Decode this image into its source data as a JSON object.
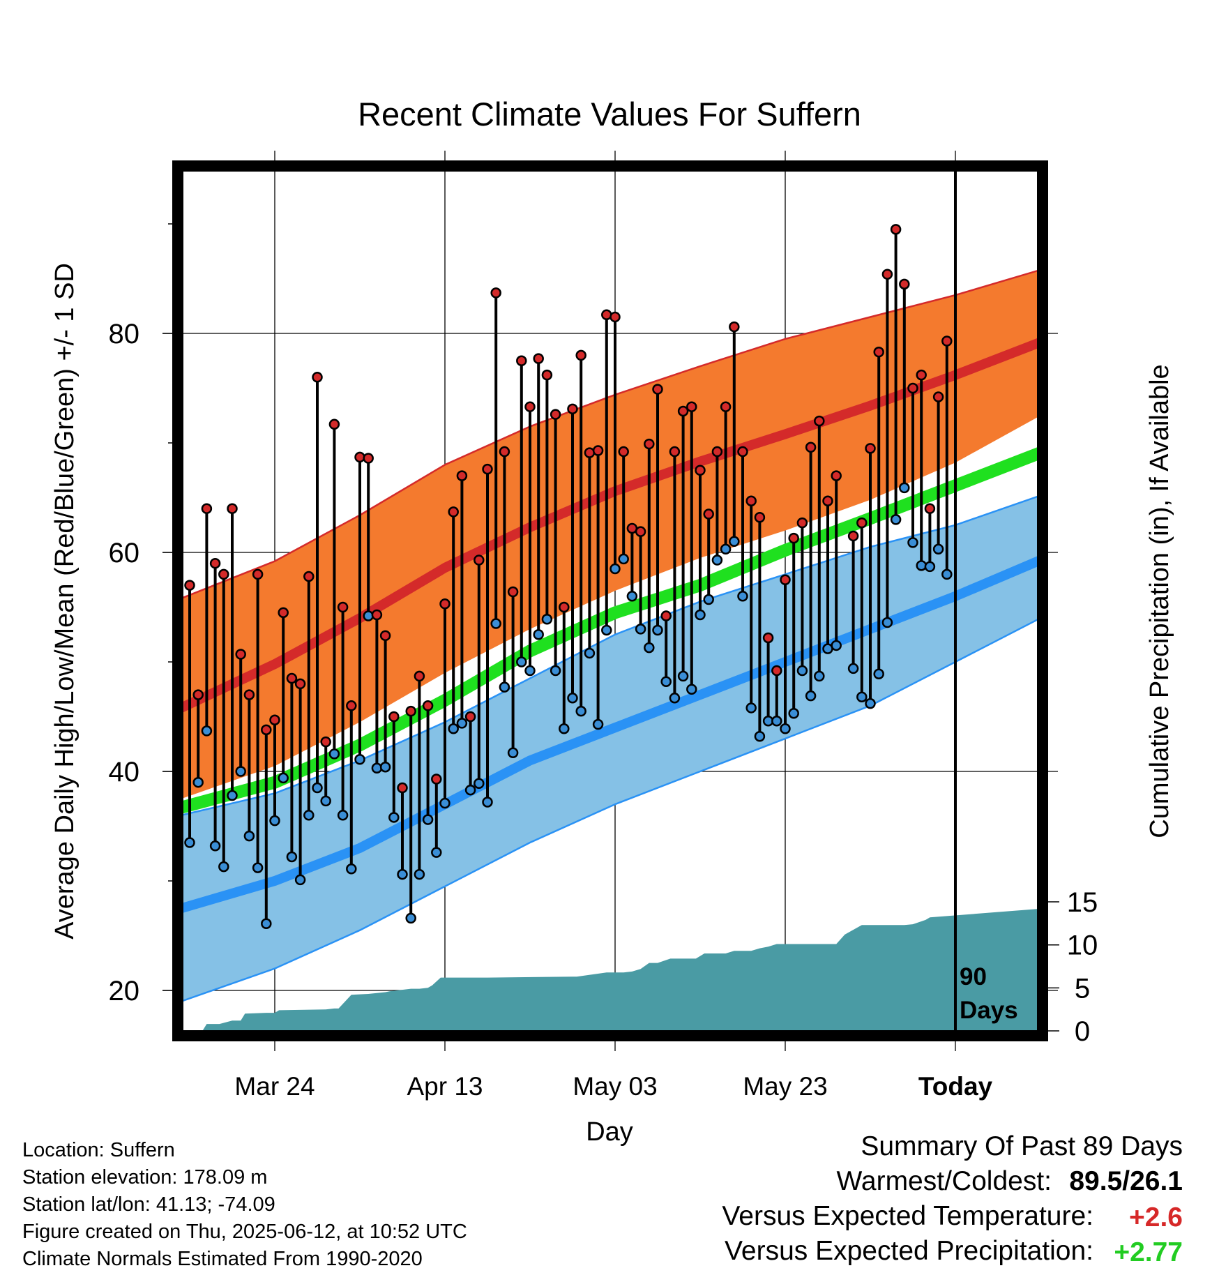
{
  "chart_data": {
    "type": "line",
    "title": "Recent Climate Values For Suffern",
    "xlabel": "Day",
    "ylabel": "Average Daily High/Low/Mean (Red/Blue/Green) +/- 1 SD",
    "y2label": "Cumulative Precipitation (in), If Available",
    "ylim": [
      16,
      96
    ],
    "y2lim": [
      0,
      30
    ],
    "xlim": [
      -1,
      100
    ],
    "x_start_date": "2025-03-14",
    "x_ticks": [
      {
        "x": 10,
        "label": "Mar 24"
      },
      {
        "x": 30,
        "label": "Apr 13"
      },
      {
        "x": 50,
        "label": "May 03"
      },
      {
        "x": 70,
        "label": "May 23"
      },
      {
        "x": 90,
        "label": "Today"
      }
    ],
    "y_ticks": [
      20,
      40,
      60,
      80
    ],
    "y2_ticks": [
      0,
      5,
      10,
      15
    ],
    "today_x": 90,
    "today_label_line1": "90",
    "today_label_line2": "Days",
    "grid": true,
    "colors": {
      "high_band": "#f47a2e",
      "high_line": "#d42a2a",
      "low_band": "#85c1e6",
      "low_line": "#2a92f5",
      "mean_line": "#1fe01f",
      "precip": "#4a9ba4",
      "high_dot": "#d42a2a",
      "low_dot": "#3a8ed6"
    },
    "normals": {
      "x": [
        -1,
        10,
        20,
        30,
        40,
        50,
        60,
        70,
        80,
        90,
        100
      ],
      "high": [
        45.8,
        49.8,
        54.0,
        58.6,
        62.3,
        65.6,
        68.3,
        70.8,
        73.4,
        76.2,
        79.2
      ],
      "high_upper": [
        55.8,
        59.2,
        63.4,
        68.0,
        71.5,
        74.4,
        77.0,
        79.5,
        81.5,
        83.5,
        85.8
      ],
      "high_lower": [
        37.5,
        40.5,
        44.5,
        49.0,
        53.0,
        56.5,
        59.5,
        62.0,
        64.8,
        68.2,
        72.5
      ],
      "mean": [
        36.7,
        39.0,
        42.4,
        46.5,
        51.0,
        54.5,
        57.0,
        60.2,
        63.1,
        66.1,
        69.1
      ],
      "low": [
        27.5,
        30.0,
        33.0,
        37.0,
        41.0,
        44.0,
        47.0,
        50.0,
        53.0,
        56.0,
        59.3
      ],
      "low_upper": [
        36.0,
        38.0,
        41.0,
        44.5,
        48.5,
        52.5,
        55.5,
        58.0,
        60.5,
        62.5,
        65.2
      ],
      "low_lower": [
        19.0,
        22.0,
        25.5,
        29.5,
        33.5,
        37.0,
        40.0,
        43.0,
        46.0,
        50.0,
        54.0
      ]
    },
    "series": [
      {
        "name": "High",
        "values": [
          57.0,
          47.0,
          64.0,
          59.0,
          58.0,
          64.0,
          50.7,
          47.0,
          58.0,
          43.8,
          44.7,
          54.5,
          48.5,
          48.0,
          57.8,
          76.0,
          42.7,
          71.7,
          55.0,
          46.0,
          68.7,
          68.6,
          54.3,
          52.4,
          45.0,
          38.5,
          45.5,
          48.7,
          46.0,
          39.3,
          55.3,
          63.7,
          67.0,
          45.0,
          59.3,
          67.6,
          83.7,
          69.2,
          56.4,
          77.5,
          73.3,
          77.7,
          76.2,
          72.6,
          55.0,
          73.1,
          78.0,
          69.1,
          69.3,
          81.7,
          81.5,
          69.2,
          62.2,
          61.9,
          69.9,
          74.9,
          54.2,
          69.2,
          72.9,
          73.3,
          67.5,
          63.5,
          69.2,
          73.3,
          80.6,
          69.2,
          64.7,
          63.2,
          52.2,
          49.2,
          57.5,
          61.3,
          62.7,
          69.6,
          72.0,
          64.7,
          67.0,
          null,
          61.5,
          62.7,
          69.5,
          78.3,
          85.4,
          89.5,
          84.5,
          75.0,
          76.2,
          64.0,
          74.2,
          79.3
        ]
      },
      {
        "name": "Low",
        "values": [
          33.5,
          39.0,
          43.7,
          33.2,
          31.3,
          37.8,
          40.0,
          34.1,
          31.2,
          26.1,
          35.5,
          39.4,
          32.2,
          30.1,
          36.0,
          38.5,
          37.3,
          41.6,
          36.0,
          31.1,
          41.1,
          54.2,
          40.3,
          40.4,
          35.8,
          30.6,
          26.6,
          30.6,
          35.6,
          32.6,
          37.1,
          43.9,
          44.4,
          38.3,
          38.9,
          37.2,
          53.5,
          47.7,
          41.7,
          50.0,
          49.2,
          52.5,
          53.9,
          49.2,
          43.9,
          46.7,
          45.5,
          50.8,
          44.3,
          52.9,
          58.5,
          59.4,
          56.0,
          53.0,
          51.3,
          52.9,
          48.2,
          46.7,
          48.7,
          47.5,
          54.3,
          55.7,
          59.3,
          60.3,
          61.0,
          56.0,
          45.8,
          43.2,
          44.6,
          44.6,
          43.9,
          45.3,
          49.2,
          46.9,
          48.7,
          51.2,
          51.5,
          null,
          49.4,
          46.8,
          46.2,
          48.9,
          53.6,
          63.0,
          65.9,
          60.9,
          58.8,
          58.7,
          60.3,
          58.0
        ]
      }
    ],
    "precip": {
      "x": [
        -1,
        1,
        1.5,
        2,
        3,
        3.5,
        5,
        6,
        6.5,
        9,
        10,
        10.5,
        16,
        17,
        17.5,
        19,
        21,
        22,
        23,
        23.5,
        26,
        27,
        28,
        28.5,
        29.5,
        35,
        45,
        45.5,
        49,
        51,
        52,
        53,
        54,
        55,
        56.5,
        59.5,
        60.5,
        61.5,
        63,
        64,
        66,
        67,
        68,
        69,
        69.5,
        70.5,
        71.5,
        74,
        75,
        76,
        77,
        79,
        80,
        83,
        84,
        85,
        86.5,
        87,
        100
      ],
      "values": [
        0.0,
        0.0,
        0.0,
        0.8,
        0.8,
        0.8,
        1.2,
        1.2,
        2.0,
        2.1,
        2.1,
        2.4,
        2.5,
        2.6,
        2.6,
        4.2,
        4.3,
        4.4,
        4.5,
        4.6,
        4.9,
        4.9,
        5.0,
        5.3,
        6.2,
        6.2,
        6.3,
        6.3,
        6.8,
        6.8,
        6.9,
        7.2,
        7.9,
        7.9,
        8.4,
        8.4,
        9.0,
        9.0,
        9.0,
        9.3,
        9.3,
        9.6,
        9.8,
        10.1,
        10.1,
        10.1,
        10.1,
        10.1,
        10.1,
        10.1,
        11.2,
        12.3,
        12.3,
        12.3,
        12.3,
        12.4,
        12.9,
        13.2,
        14.2
      ]
    }
  },
  "footer": {
    "location": "Location: Suffern",
    "elevation": "Station elevation: 178.09 m",
    "latlon": "Station lat/lon: 41.13; -74.09",
    "created": "Figure created on Thu, 2025-06-12, at 10:52 UTC",
    "normals": "Climate Normals Estimated From 1990-2020"
  },
  "summary": {
    "heading": "Summary Of Past 89 Days",
    "warm_cold_label": "Warmest/Coldest:",
    "warm_cold_value": "89.5/26.1",
    "temp_label": "Versus Expected Temperature:",
    "temp_value": "+2.6",
    "temp_color": "#d62828",
    "precip_label": "Versus Expected Precipitation:",
    "precip_value": "+2.77",
    "precip_color": "#22cc22"
  }
}
